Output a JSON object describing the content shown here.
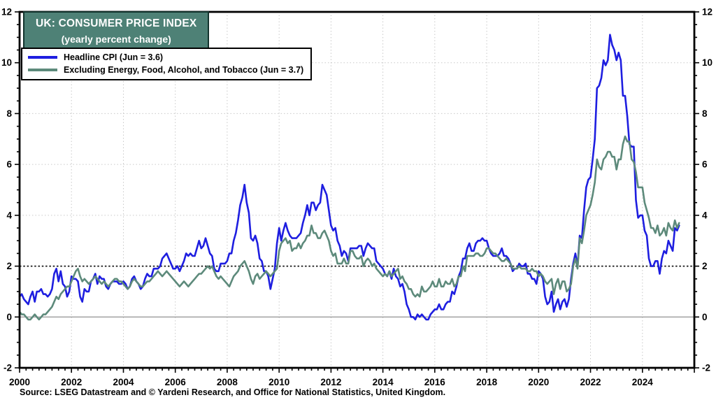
{
  "title_box": {
    "line1": "UK: CONSUMER PRICE INDEX",
    "line2": "(yearly percent change)",
    "bg_color": "#4E8176",
    "text_color": "#ffffff"
  },
  "legend": {
    "items": [
      {
        "label": "Headline CPI (Jun = 3.6)",
        "color": "#1E1EE0"
      },
      {
        "label": "Excluding Energy, Food, Alcohol, and Tobacco (Jun = 3.7)",
        "color": "#5D8A7B"
      }
    ]
  },
  "source": "Source: LSEG Datastream and © Yardeni Research, and Office for National Statistics, United Kingdom.",
  "chart_data": {
    "type": "line",
    "title": "UK: CONSUMER PRICE INDEX (yearly percent change)",
    "frequency": "monthly",
    "x_start": "2000-01",
    "x_end": "2025-06",
    "xlim": [
      2000,
      2026
    ],
    "ylim": [
      -2,
      12
    ],
    "x_ticks": [
      2000,
      2002,
      2004,
      2006,
      2008,
      2010,
      2012,
      2014,
      2016,
      2018,
      2020,
      2022,
      2024
    ],
    "y_ticks": [
      -2,
      0,
      2,
      4,
      6,
      8,
      10,
      12
    ],
    "y_minor_step": 0.5,
    "x_minor_step": 0.25,
    "grid": {
      "horizontal_dotted": [
        4,
        6,
        8,
        10
      ],
      "vertical_years": [
        2002,
        2004,
        2006,
        2008,
        2010,
        2012,
        2014,
        2016,
        2018,
        2020,
        2022,
        2024
      ],
      "zero_line": 0,
      "target_line": 2
    },
    "series": [
      {
        "name": "Headline CPI (Jun = 3.6)",
        "color": "#1E1EE0",
        "values": [
          0.8,
          0.9,
          0.7,
          0.6,
          0.5,
          0.8,
          1.0,
          0.6,
          1.0,
          1.0,
          1.1,
          0.9,
          0.9,
          0.8,
          0.9,
          1.1,
          1.7,
          1.9,
          1.4,
          1.8,
          1.3,
          1.2,
          0.8,
          1.0,
          1.6,
          1.5,
          1.5,
          1.4,
          0.8,
          0.6,
          1.1,
          1.0,
          1.0,
          1.4,
          1.5,
          1.7,
          1.3,
          1.6,
          1.5,
          1.5,
          1.2,
          1.1,
          1.3,
          1.4,
          1.4,
          1.4,
          1.3,
          1.3,
          1.4,
          1.3,
          1.1,
          1.2,
          1.5,
          1.6,
          1.4,
          1.3,
          1.1,
          1.2,
          1.5,
          1.7,
          1.6,
          1.6,
          1.9,
          1.9,
          1.9,
          2.0,
          2.3,
          2.4,
          2.5,
          2.3,
          2.1,
          1.9,
          1.9,
          2.0,
          1.8,
          2.0,
          2.2,
          2.5,
          2.4,
          2.5,
          2.4,
          2.4,
          2.7,
          3.0,
          2.7,
          2.8,
          3.1,
          2.8,
          2.5,
          2.4,
          1.9,
          1.8,
          1.8,
          2.1,
          2.1,
          2.1,
          2.2,
          2.5,
          2.5,
          3.0,
          3.3,
          3.8,
          4.4,
          4.7,
          5.2,
          4.5,
          4.1,
          3.1,
          3.0,
          3.2,
          2.9,
          2.3,
          2.2,
          1.8,
          1.8,
          1.6,
          1.1,
          1.5,
          1.9,
          2.9,
          3.5,
          3.0,
          3.4,
          3.7,
          3.4,
          3.2,
          3.1,
          3.1,
          3.1,
          3.2,
          3.3,
          3.7,
          4.0,
          4.4,
          4.0,
          4.5,
          4.5,
          4.2,
          4.4,
          4.5,
          5.2,
          5.0,
          4.8,
          4.2,
          3.6,
          3.4,
          3.5,
          3.0,
          2.8,
          2.4,
          2.6,
          2.5,
          2.2,
          2.7,
          2.7,
          2.7,
          2.7,
          2.8,
          2.8,
          2.4,
          2.7,
          2.9,
          2.8,
          2.7,
          2.7,
          2.2,
          2.1,
          2.0,
          1.9,
          1.7,
          1.6,
          1.8,
          1.5,
          1.9,
          1.6,
          1.5,
          1.2,
          1.3,
          1.0,
          0.5,
          0.3,
          0.0,
          0.0,
          -0.1,
          0.1,
          0.0,
          0.1,
          0.0,
          -0.1,
          -0.1,
          0.1,
          0.2,
          0.3,
          0.3,
          0.5,
          0.3,
          0.3,
          0.5,
          0.6,
          0.6,
          1.0,
          0.9,
          1.2,
          1.6,
          1.8,
          2.3,
          2.3,
          2.7,
          2.9,
          2.6,
          2.6,
          2.9,
          3.0,
          3.0,
          3.1,
          3.0,
          3.0,
          2.7,
          2.5,
          2.4,
          2.4,
          2.4,
          2.5,
          2.7,
          2.4,
          2.4,
          2.3,
          2.1,
          1.8,
          1.9,
          1.9,
          2.1,
          2.0,
          2.0,
          2.1,
          1.7,
          1.7,
          1.5,
          1.5,
          1.3,
          1.8,
          1.7,
          1.5,
          0.8,
          0.5,
          0.6,
          1.0,
          0.2,
          0.5,
          0.7,
          0.3,
          0.6,
          0.7,
          0.4,
          0.7,
          1.5,
          2.1,
          2.5,
          2.0,
          3.2,
          3.1,
          4.2,
          5.1,
          5.4,
          5.5,
          6.2,
          7.0,
          9.0,
          9.1,
          9.4,
          10.1,
          9.9,
          10.1,
          11.1,
          10.7,
          10.5,
          10.1,
          10.4,
          10.1,
          8.7,
          8.7,
          7.9,
          6.8,
          6.7,
          6.7,
          4.6,
          3.9,
          4.0,
          4.0,
          3.4,
          3.2,
          2.3,
          2.0,
          2.0,
          2.2,
          2.2,
          1.7,
          2.3,
          2.6,
          2.5,
          3.0,
          2.8,
          2.6,
          3.5,
          3.4,
          3.6
        ]
      },
      {
        "name": "Excluding Energy, Food, Alcohol, and Tobacco (Jun = 3.7)",
        "color": "#5D8A7B",
        "values": [
          0.2,
          0.1,
          0.1,
          0.0,
          -0.1,
          -0.1,
          0.0,
          0.1,
          0.0,
          -0.1,
          0.0,
          0.1,
          0.1,
          0.2,
          0.3,
          0.4,
          0.6,
          0.8,
          0.7,
          0.9,
          1.0,
          1.1,
          1.2,
          1.2,
          1.4,
          1.6,
          1.8,
          1.9,
          1.6,
          1.4,
          1.5,
          1.4,
          1.3,
          1.4,
          1.5,
          1.6,
          1.5,
          1.4,
          1.3,
          1.4,
          1.3,
          1.2,
          1.3,
          1.4,
          1.5,
          1.5,
          1.4,
          1.4,
          1.3,
          1.2,
          1.1,
          1.2,
          1.4,
          1.5,
          1.4,
          1.3,
          1.2,
          1.2,
          1.3,
          1.4,
          1.4,
          1.5,
          1.6,
          1.7,
          1.8,
          1.7,
          1.6,
          1.7,
          1.8,
          1.7,
          1.6,
          1.5,
          1.4,
          1.3,
          1.2,
          1.3,
          1.4,
          1.3,
          1.2,
          1.3,
          1.4,
          1.5,
          1.6,
          1.7,
          1.7,
          1.8,
          1.9,
          2.0,
          1.9,
          2.0,
          1.8,
          1.6,
          1.5,
          1.6,
          1.5,
          1.4,
          1.3,
          1.2,
          1.4,
          1.6,
          1.7,
          1.8,
          2.0,
          2.1,
          2.2,
          2.0,
          1.8,
          1.5,
          1.3,
          1.6,
          1.7,
          1.5,
          1.6,
          1.7,
          1.8,
          1.7,
          1.6,
          1.7,
          1.8,
          1.9,
          2.6,
          2.9,
          3.0,
          3.1,
          2.9,
          3.0,
          2.6,
          2.7,
          2.7,
          2.9,
          2.7,
          2.9,
          3.0,
          3.2,
          3.2,
          3.6,
          3.3,
          3.3,
          3.1,
          3.1,
          3.3,
          3.4,
          3.2,
          3.0,
          2.6,
          2.4,
          2.5,
          2.1,
          2.1,
          2.1,
          2.3,
          2.1,
          2.1,
          2.6,
          2.6,
          2.4,
          2.3,
          2.3,
          2.4,
          2.0,
          2.2,
          2.3,
          2.2,
          2.0,
          2.1,
          1.9,
          1.8,
          1.7,
          1.6,
          1.7,
          1.6,
          1.8,
          1.6,
          1.7,
          1.8,
          1.9,
          1.5,
          1.6,
          1.4,
          1.3,
          1.1,
          1.1,
          0.9,
          0.8,
          0.9,
          0.8,
          1.2,
          1.0,
          1.0,
          1.1,
          1.2,
          1.4,
          1.2,
          1.2,
          1.5,
          1.2,
          1.2,
          1.4,
          1.3,
          1.3,
          1.5,
          1.2,
          1.3,
          1.6,
          1.6,
          2.0,
          1.8,
          2.4,
          2.4,
          2.4,
          2.4,
          2.5,
          2.5,
          2.4,
          2.4,
          2.5,
          2.7,
          2.7,
          2.6,
          2.5,
          2.5,
          2.4,
          2.3,
          2.2,
          2.2,
          2.3,
          2.2,
          2.1,
          1.9,
          1.9,
          1.9,
          2.0,
          1.9,
          1.9,
          1.9,
          1.8,
          1.8,
          1.9,
          1.8,
          1.8,
          1.6,
          1.7,
          1.6,
          1.4,
          1.3,
          1.4,
          1.5,
          0.9,
          1.3,
          1.5,
          1.1,
          1.4,
          1.4,
          1.0,
          1.1,
          1.3,
          2.0,
          2.3,
          1.9,
          3.1,
          2.9,
          3.4,
          4.0,
          4.2,
          4.4,
          4.8,
          5.3,
          6.2,
          5.9,
          5.8,
          6.2,
          6.3,
          6.5,
          6.5,
          6.3,
          6.3,
          5.8,
          6.2,
          6.2,
          6.8,
          7.1,
          6.9,
          6.9,
          6.2,
          6.1,
          5.7,
          5.1,
          5.1,
          5.1,
          4.5,
          4.2,
          3.9,
          3.5,
          3.5,
          3.3,
          3.6,
          3.2,
          3.3,
          3.5,
          3.2,
          3.7,
          3.5,
          3.4,
          3.8,
          3.5,
          3.7
        ]
      }
    ]
  }
}
